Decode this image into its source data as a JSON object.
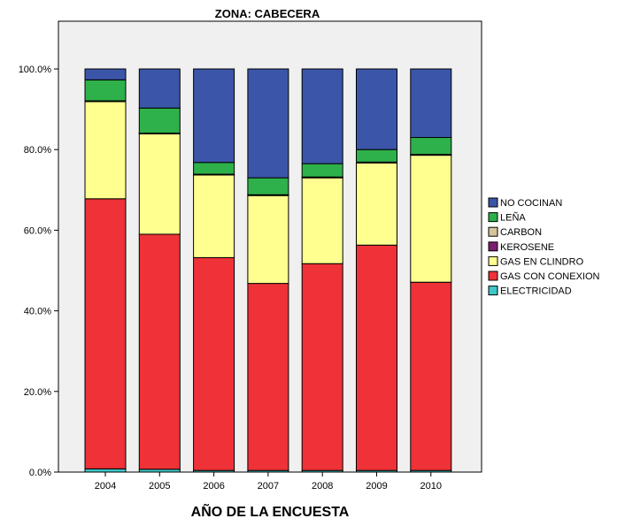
{
  "chart_data": {
    "type": "bar",
    "stacked": true,
    "title": "ZONA: CABECERA",
    "xlabel": "AÑO DE LA ENCUESTA",
    "ylabel": "",
    "ylim": [
      0,
      110
    ],
    "yticks": [
      0,
      20,
      40,
      60,
      80,
      100
    ],
    "ytick_labels": [
      "0.0%",
      "20.0%",
      "40.0%",
      "60.0%",
      "80.0%",
      "100.0%"
    ],
    "grid": false,
    "legend_position": "right",
    "categories": [
      "2004",
      "2005",
      "2006",
      "2007",
      "2008",
      "2009",
      "2010"
    ],
    "series": [
      {
        "name": "ELECTRICIDAD",
        "color": "#3ec7c7",
        "values": [
          0.8,
          0.7,
          0.4,
          0.4,
          0.4,
          0.4,
          0.4
        ]
      },
      {
        "name": "GAS CON CONEXION",
        "color": "#ee3237",
        "values": [
          67.0,
          58.3,
          52.8,
          46.4,
          51.3,
          55.9,
          46.7
        ]
      },
      {
        "name": "GAS EN CLINDRO",
        "color": "#ffff8f",
        "values": [
          24.1,
          24.9,
          20.5,
          21.8,
          21.3,
          20.4,
          31.5
        ]
      },
      {
        "name": "KEROSENE",
        "color": "#7b1d6e",
        "values": [
          0.1,
          0.1,
          0.1,
          0.1,
          0.1,
          0.1,
          0.1
        ]
      },
      {
        "name": "CARBON",
        "color": "#d6c49a",
        "values": [
          0.1,
          0.1,
          0.1,
          0.1,
          0.1,
          0.1,
          0.1
        ]
      },
      {
        "name": "LEÑA",
        "color": "#2eb14a",
        "values": [
          5.2,
          6.2,
          2.9,
          4.2,
          3.3,
          3.1,
          4.2
        ]
      },
      {
        "name": "NO COCINAN",
        "color": "#3b55a9",
        "values": [
          2.7,
          9.7,
          23.2,
          27.0,
          23.5,
          20.0,
          17.0
        ]
      }
    ],
    "legend_order": [
      "NO COCINAN",
      "LEÑA",
      "CARBON",
      "KEROSENE",
      "GAS EN CLINDRO",
      "GAS CON CONEXION",
      "ELECTRICIDAD"
    ],
    "colors": {
      "plot_background": "#f0f0f0",
      "bar_outline": "#000000"
    }
  }
}
